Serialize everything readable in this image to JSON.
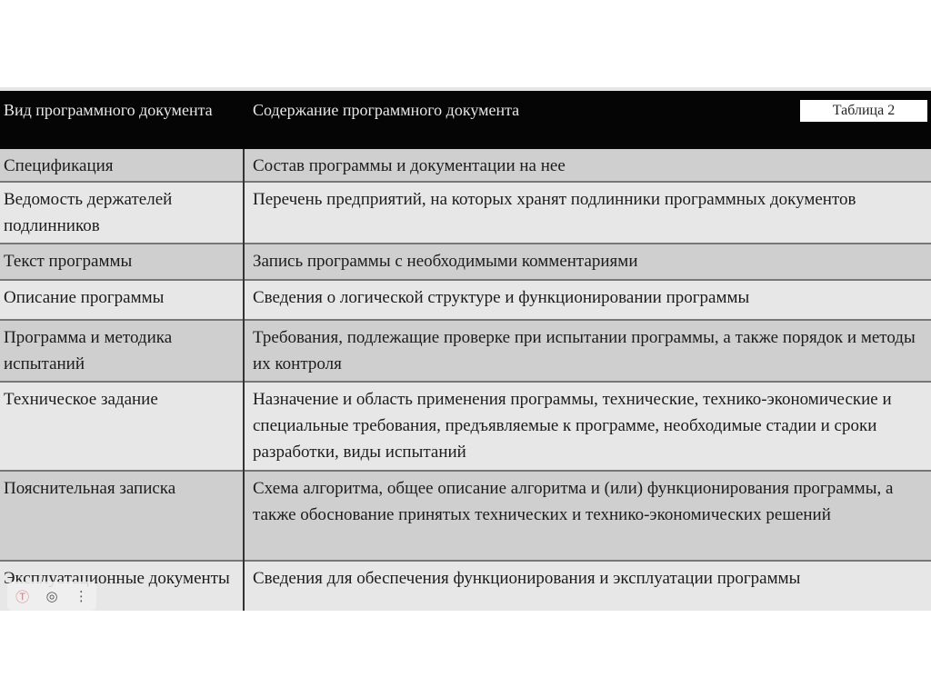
{
  "table": {
    "tag": "Таблица 2",
    "headers": [
      "Вид программного документа",
      "Содержание программного документа"
    ],
    "rows": [
      {
        "type": "Спецификация",
        "content": "Состав программы и документации на нее"
      },
      {
        "type": "Ведомость держателей подлинников",
        "content": "Перечень предприятий, на которых хранят подлинники программных документов"
      },
      {
        "type": "Текст программы",
        "content": "Запись программы с необходимыми комментариями"
      },
      {
        "type": "Описание программы",
        "content": "Сведения о логической структуре и функционировании программы"
      },
      {
        "type": "Программа и методика испытаний",
        "content": "Требования, подлежащие проверке при испытании программы, а также порядок и методы их контроля"
      },
      {
        "type": "Техническое задание",
        "content": "Назначение и область применения программы, технические, технико-экономические и специальные требования, предъявляемые к программе, необходимые стадии и сроки разработки, виды испытаний"
      },
      {
        "type": "Пояснительная записка",
        "content": "Схема алгоритма, общее описание алгоритма и (или) функционирования программы, а также обоснование принятых технических и технико-экономических решений"
      },
      {
        "type": "Эксплуатационные документы",
        "content": "Сведения для обеспечения функционирования и эксплуатации программы"
      }
    ]
  },
  "overlay": {
    "icons": [
      "translate-icon",
      "camera-icon",
      "more-icon"
    ]
  }
}
